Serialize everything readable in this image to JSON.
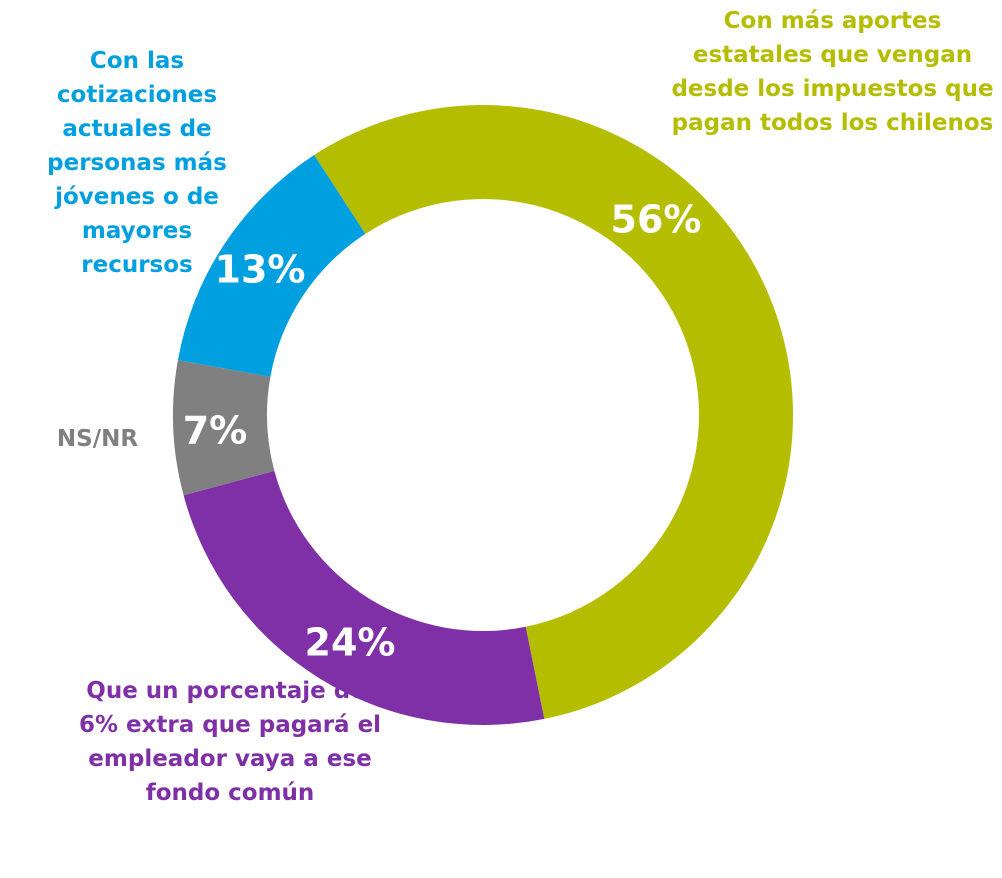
{
  "chart_data": {
    "type": "donut",
    "categories": [
      "Con más aportes estatales que vengan desde los impuestos que pagan todos los chilenos",
      "Que un porcentaje del 6% extra que pagará el empleador vaya a ese fondo común",
      "NS/NR",
      "Con las cotizaciones actuales de personas más jóvenes o de mayores recursos"
    ],
    "values": [
      56,
      24,
      7,
      13
    ],
    "value_labels": [
      "56%",
      "24%",
      "7%",
      "13%"
    ],
    "colors": [
      "#b5bd00",
      "#7f30a6",
      "#808080",
      "#009fe0"
    ]
  }
}
